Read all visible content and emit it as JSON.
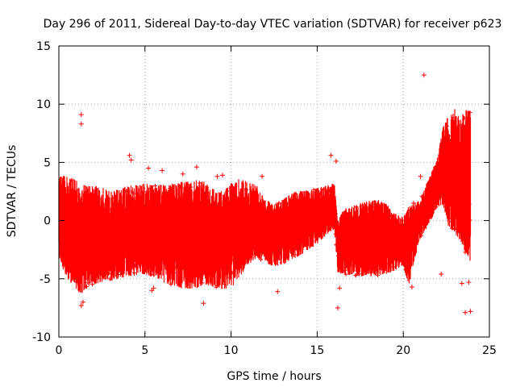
{
  "chart_data": {
    "type": "scatter",
    "title": "Day 296 of 2011, Sidereal Day-to-day VTEC variation (SDTVAR) for receiver p623",
    "xlabel": "GPS time / hours",
    "ylabel": "SDTVAR / TECUs",
    "xlim": [
      0,
      25
    ],
    "ylim": [
      -10,
      15
    ],
    "xticks": [
      0,
      5,
      10,
      15,
      20,
      25
    ],
    "yticks": [
      -10,
      -5,
      0,
      5,
      10,
      15
    ],
    "grid": true,
    "marker": "+",
    "series_color": "#ff0000",
    "envelope": {
      "description": "dense band of points: upper and lower bounds of the SDTVAR scatter vs GPS time",
      "x": [
        0,
        0.5,
        1.0,
        1.3,
        1.6,
        2.0,
        2.5,
        3.0,
        3.5,
        4.0,
        4.5,
        5.0,
        5.5,
        6.0,
        6.5,
        7.0,
        7.5,
        8.0,
        8.5,
        9.0,
        9.5,
        10.0,
        10.5,
        11.0,
        11.5,
        12.0,
        12.5,
        13.0,
        13.5,
        14.0,
        14.5,
        15.0,
        15.5,
        16.0,
        16.2,
        16.5,
        17.0,
        17.5,
        18.0,
        18.5,
        19.0,
        19.5,
        20.0,
        20.3,
        20.6,
        21.0,
        21.3,
        21.6,
        22.0,
        22.3,
        22.6,
        23.0,
        23.3,
        23.6,
        23.9
      ],
      "upper": [
        3.9,
        3.8,
        3.5,
        3.2,
        3.0,
        3.0,
        2.9,
        2.5,
        2.7,
        3.0,
        3.1,
        3.2,
        3.0,
        3.1,
        3.2,
        3.3,
        3.4,
        3.5,
        3.3,
        2.7,
        2.6,
        3.2,
        3.6,
        3.4,
        3.0,
        1.8,
        1.4,
        1.8,
        2.4,
        2.6,
        2.6,
        2.8,
        3.0,
        3.2,
        0.0,
        1.0,
        1.2,
        1.5,
        1.7,
        1.8,
        1.5,
        0.7,
        0.3,
        1.2,
        1.5,
        1.8,
        3.0,
        4.0,
        5.5,
        8.0,
        9.0,
        9.6,
        8.8,
        9.5,
        9.5
      ],
      "lower": [
        -3.5,
        -5.0,
        -6.0,
        -6.3,
        -5.8,
        -5.5,
        -5.3,
        -5.2,
        -5.0,
        -4.8,
        -4.7,
        -4.6,
        -4.9,
        -5.3,
        -5.5,
        -5.8,
        -5.9,
        -5.8,
        -5.5,
        -5.7,
        -5.9,
        -5.8,
        -5.0,
        -3.8,
        -3.2,
        -3.6,
        -4.0,
        -3.8,
        -3.4,
        -3.0,
        -2.5,
        -2.0,
        -1.3,
        -0.8,
        -4.5,
        -4.6,
        -4.7,
        -4.8,
        -4.8,
        -4.7,
        -4.6,
        -4.3,
        -3.8,
        -5.8,
        -3.6,
        -1.5,
        -0.8,
        0.0,
        1.2,
        1.3,
        -0.5,
        -1.2,
        -1.8,
        -2.8,
        -3.5
      ]
    },
    "outliers": [
      {
        "x": 1.3,
        "y": 9.1
      },
      {
        "x": 1.3,
        "y": 8.3
      },
      {
        "x": 1.3,
        "y": -7.3
      },
      {
        "x": 1.4,
        "y": -7.0
      },
      {
        "x": 4.1,
        "y": 5.6
      },
      {
        "x": 4.2,
        "y": 5.2
      },
      {
        "x": 5.2,
        "y": 4.5
      },
      {
        "x": 5.4,
        "y": -6.0
      },
      {
        "x": 5.5,
        "y": -5.8
      },
      {
        "x": 6.0,
        "y": 4.3
      },
      {
        "x": 7.2,
        "y": 4.0
      },
      {
        "x": 8.0,
        "y": 4.6
      },
      {
        "x": 8.4,
        "y": -7.1
      },
      {
        "x": 9.2,
        "y": 3.8
      },
      {
        "x": 9.5,
        "y": 3.9
      },
      {
        "x": 11.8,
        "y": 3.8
      },
      {
        "x": 12.7,
        "y": -6.1
      },
      {
        "x": 15.8,
        "y": 5.6
      },
      {
        "x": 16.1,
        "y": 5.1
      },
      {
        "x": 16.2,
        "y": -7.5
      },
      {
        "x": 16.3,
        "y": -5.8
      },
      {
        "x": 20.5,
        "y": -5.7
      },
      {
        "x": 20.6,
        "y": 1.5
      },
      {
        "x": 21.2,
        "y": 12.5
      },
      {
        "x": 21.0,
        "y": 3.8
      },
      {
        "x": 22.2,
        "y": -4.6
      },
      {
        "x": 23.4,
        "y": -5.4
      },
      {
        "x": 23.6,
        "y": -7.9
      },
      {
        "x": 23.8,
        "y": -5.3
      },
      {
        "x": 23.9,
        "y": -7.8
      }
    ]
  }
}
